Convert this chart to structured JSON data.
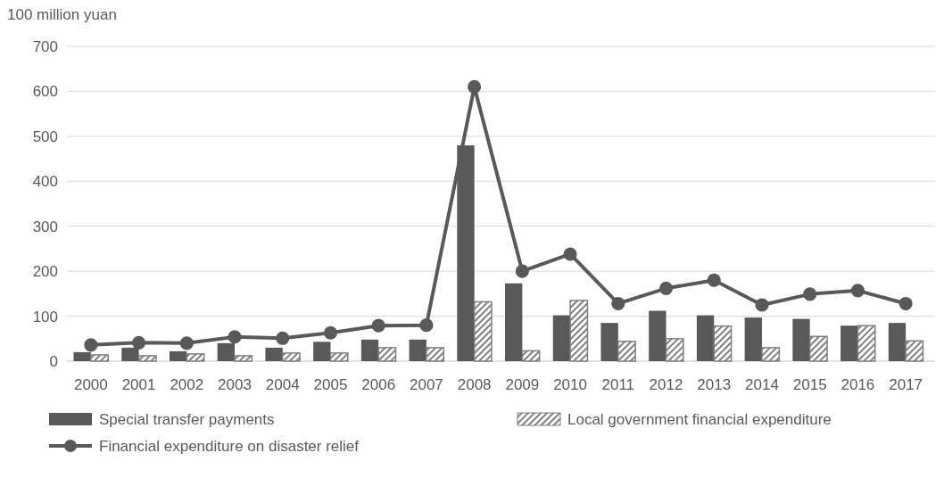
{
  "chart_data": {
    "type": "bar",
    "ylabel": "100 million yuan",
    "categories": [
      "2000",
      "2001",
      "2002",
      "2003",
      "2004",
      "2005",
      "2006",
      "2007",
      "2008",
      "2009",
      "2010",
      "2011",
      "2012",
      "2013",
      "2014",
      "2015",
      "2016",
      "2017"
    ],
    "series": [
      {
        "name": "Special transfer payments",
        "color": "#595959",
        "values": [
          20,
          30,
          22,
          40,
          30,
          43,
          48,
          48,
          480,
          173,
          102,
          85,
          112,
          102,
          97,
          94,
          79,
          85
        ]
      },
      {
        "name": "Local government financial expenditure",
        "color": "#7f7f7f",
        "values": [
          14,
          12,
          16,
          12,
          18,
          18,
          30,
          30,
          132,
          23,
          135,
          44,
          50,
          78,
          30,
          55,
          79,
          45
        ]
      },
      {
        "name": "Financial expenditure on disaster relief",
        "type": "line",
        "color": "#595959",
        "values": [
          36,
          41,
          40,
          54,
          51,
          63,
          79,
          80,
          610,
          200,
          238,
          128,
          162,
          180,
          125,
          149,
          157,
          128
        ]
      }
    ],
    "ylim": [
      0,
      700
    ],
    "yticks": [
      0,
      100,
      200,
      300,
      400,
      500,
      600,
      700
    ],
    "grid": "y",
    "legend": "bottom",
    "marker": "circle"
  }
}
